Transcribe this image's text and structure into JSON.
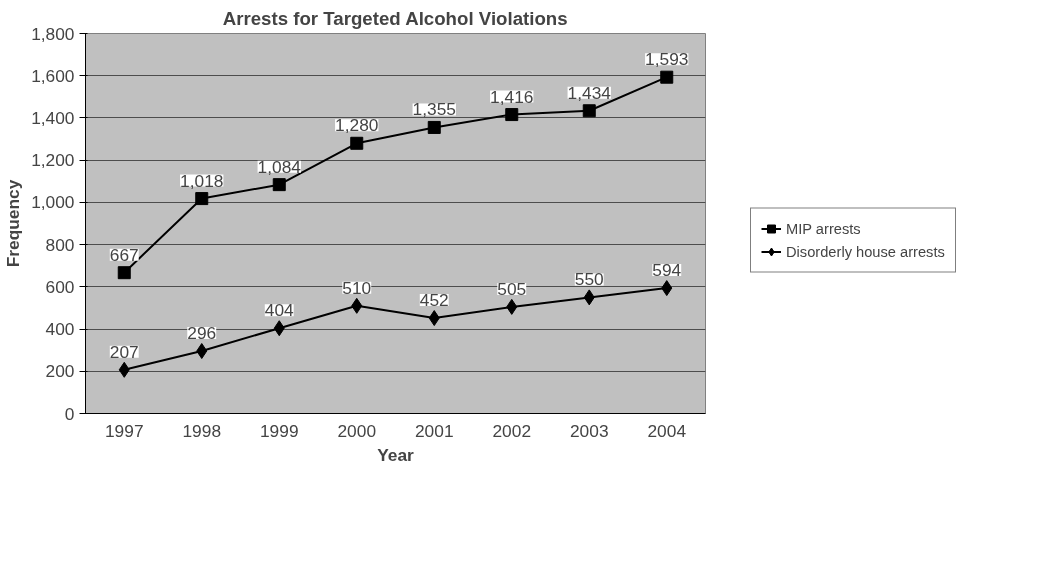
{
  "chart_data": {
    "type": "line",
    "title": "Arrests for Targeted Alcohol Violations",
    "xlabel": "Year",
    "ylabel": "Frequency",
    "categories": [
      "1997",
      "1998",
      "1999",
      "2000",
      "2001",
      "2002",
      "2003",
      "2004"
    ],
    "series": [
      {
        "name": "MIP arrests",
        "color": "#000000",
        "marker": "square",
        "values": [
          667,
          1018,
          1084,
          1280,
          1355,
          1416,
          1434,
          1593
        ],
        "value_labels": [
          "667",
          "1,018",
          "1,084",
          "1,280",
          "1,355",
          "1,416",
          "1,434",
          "1,593"
        ]
      },
      {
        "name": "Disorderly house arrests",
        "color": "#000000",
        "marker": "diamond",
        "values": [
          207,
          296,
          404,
          510,
          452,
          505,
          550,
          594
        ],
        "value_labels": [
          "207",
          "296",
          "404",
          "510",
          "452",
          "505",
          "550",
          "594"
        ]
      }
    ],
    "ylim": [
      0,
      1800
    ],
    "yticks": [
      {
        "value": 0,
        "label": "0"
      },
      {
        "value": 200,
        "label": "200"
      },
      {
        "value": 400,
        "label": "400"
      },
      {
        "value": 600,
        "label": "600"
      },
      {
        "value": 800,
        "label": "800"
      },
      {
        "value": 1000,
        "label": "1,000"
      },
      {
        "value": 1200,
        "label": "1,200"
      },
      {
        "value": 1400,
        "label": "1,400"
      },
      {
        "value": 1600,
        "label": "1,600"
      },
      {
        "value": 1800,
        "label": "1,800"
      }
    ],
    "grid": "y",
    "legend": "right",
    "line_style": "solid"
  }
}
